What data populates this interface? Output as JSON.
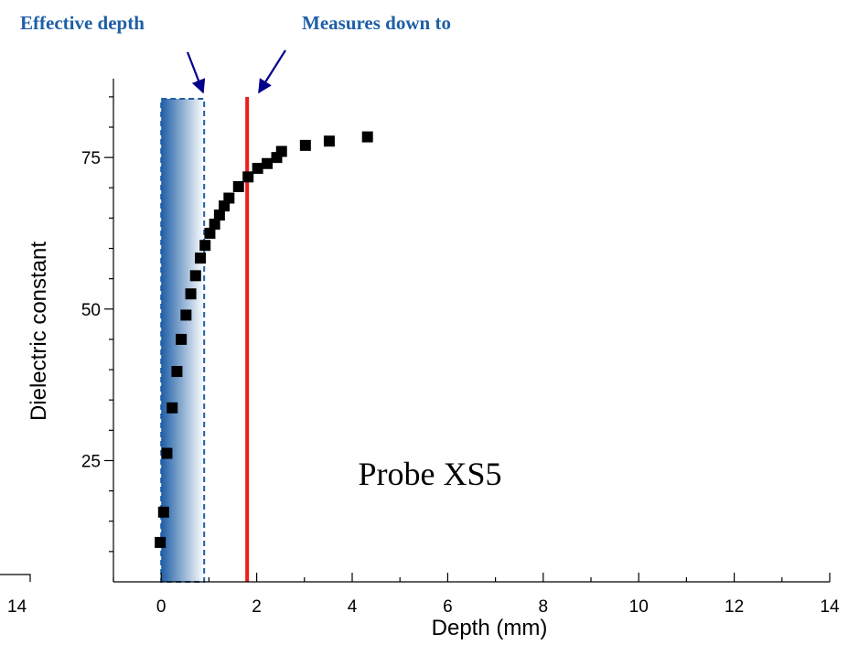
{
  "chart_data": {
    "type": "scatter",
    "title": "",
    "xlabel": "Depth (mm)",
    "ylabel": "Dielectric constant",
    "xlim": [
      -1,
      14
    ],
    "ylim": [
      5,
      88
    ],
    "x_ticks": [
      0,
      2,
      4,
      6,
      8,
      10,
      12,
      14
    ],
    "x_tick_labels": [
      "0",
      "2",
      "4",
      "6",
      "8",
      "10",
      "12",
      "14"
    ],
    "y_ticks": [
      25,
      50,
      75
    ],
    "y_tick_labels": [
      "25",
      "50",
      "75"
    ],
    "stray_tick_label": "14",
    "grid": false,
    "series": [
      {
        "name": "",
        "marker": "square",
        "color": "#000000",
        "x": [
          -0.02,
          0.05,
          0.12,
          0.23,
          0.33,
          0.42,
          0.52,
          0.62,
          0.72,
          0.82,
          0.92,
          1.02,
          1.12,
          1.22,
          1.32,
          1.42,
          1.62,
          1.82,
          2.02,
          2.22,
          2.42,
          2.52,
          3.02,
          3.52,
          4.32
        ],
        "y": [
          11.5,
          16.5,
          26.2,
          33.7,
          39.7,
          45.0,
          49.0,
          52.5,
          55.5,
          58.4,
          60.5,
          62.5,
          64.0,
          65.5,
          67.0,
          68.3,
          70.2,
          71.8,
          73.2,
          74.0,
          75.0,
          76.0,
          77.0,
          77.7,
          78.4
        ]
      }
    ],
    "effective_depth_band": {
      "from": 0.0,
      "to": 0.9,
      "color": "#1f5fa6"
    },
    "measures_down_to_line": {
      "x": 1.8,
      "color": "#ee1c1c"
    },
    "annotations": {
      "effective_depth": "Effective depth",
      "measures_down_to": "Measures down to",
      "probe": "Probe XS5"
    },
    "annotation_color": "#1f5fa6",
    "arrow_color": "#00008b"
  }
}
